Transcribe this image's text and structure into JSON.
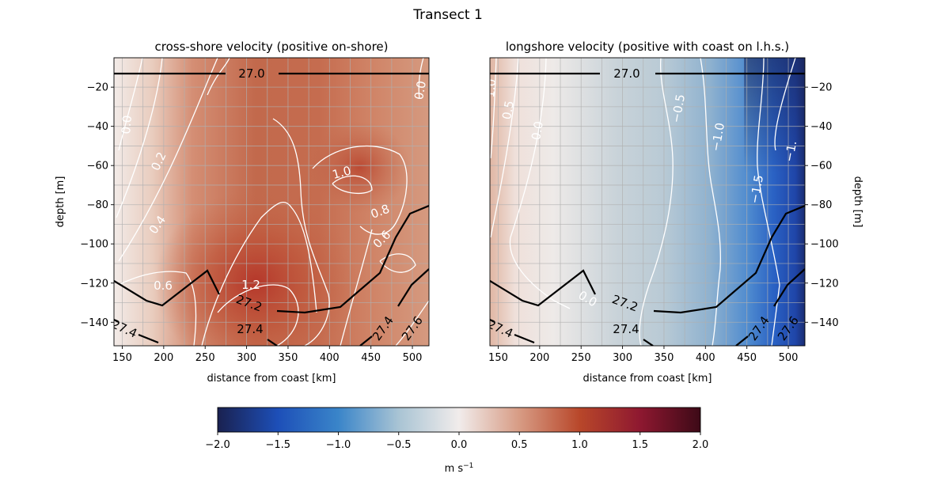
{
  "figure": {
    "suptitle": "Transect 1"
  },
  "colorbar": {
    "label": "m s",
    "label_sup": "−1",
    "ticks": [
      "−2.0",
      "−1.5",
      "−1.0",
      "−0.5",
      "0.0",
      "0.5",
      "1.0",
      "1.5",
      "2.0"
    ],
    "range": [
      -2.0,
      2.0
    ],
    "colormap": "balance (blue–white–red)",
    "stops": [
      "#1a2150",
      "#1d4fb8",
      "#3a85c9",
      "#a9c4d4",
      "#f1eceb",
      "#d79b84",
      "#b8472a",
      "#8e1830",
      "#3d0a17"
    ]
  },
  "chart_data": [
    {
      "type": "heatmap",
      "title": "cross-shore velocity (positive on-shore)",
      "xlabel": "distance from coast [km]",
      "ylabel": "depth [m]",
      "xlim": [
        140,
        520
      ],
      "ylim": [
        -152,
        -5
      ],
      "xticks": [
        "150",
        "200",
        "250",
        "300",
        "350",
        "400",
        "450",
        "500"
      ],
      "yticks": [
        "−20",
        "−40",
        "−60",
        "−80",
        "−100",
        "−120",
        "−140"
      ],
      "grid": true,
      "velocity_contours_labels": [
        "0.0",
        "0.2",
        "0.4",
        "0.6",
        "0.6",
        "0.8",
        "1.0",
        "1.2",
        "0.0"
      ],
      "density_contours_labels": [
        "27.0",
        "27.2",
        "27.4",
        "27.4",
        "27.6",
        "27.4"
      ]
    },
    {
      "type": "heatmap",
      "title": "longshore velocity (positive with coast on l.h.s.)",
      "xlabel": "distance from coast [km]",
      "ylabel": "depth [m]",
      "xlim": [
        140,
        520
      ],
      "ylim": [
        -152,
        -5
      ],
      "xticks": [
        "150",
        "200",
        "250",
        "300",
        "350",
        "400",
        "450",
        "500"
      ],
      "yticks": [
        "−20",
        "−40",
        "−60",
        "−80",
        "−100",
        "−120",
        "−140"
      ],
      "grid": true,
      "velocity_contours_labels": [
        "1.0",
        "0.5",
        "0.0",
        "−0.5",
        "−1.0",
        "−1.5",
        "−1.",
        "0.0"
      ],
      "density_contours_labels": [
        "27.0",
        "27.2",
        "27.4",
        "27.4",
        "27.6",
        "27.4"
      ]
    }
  ]
}
